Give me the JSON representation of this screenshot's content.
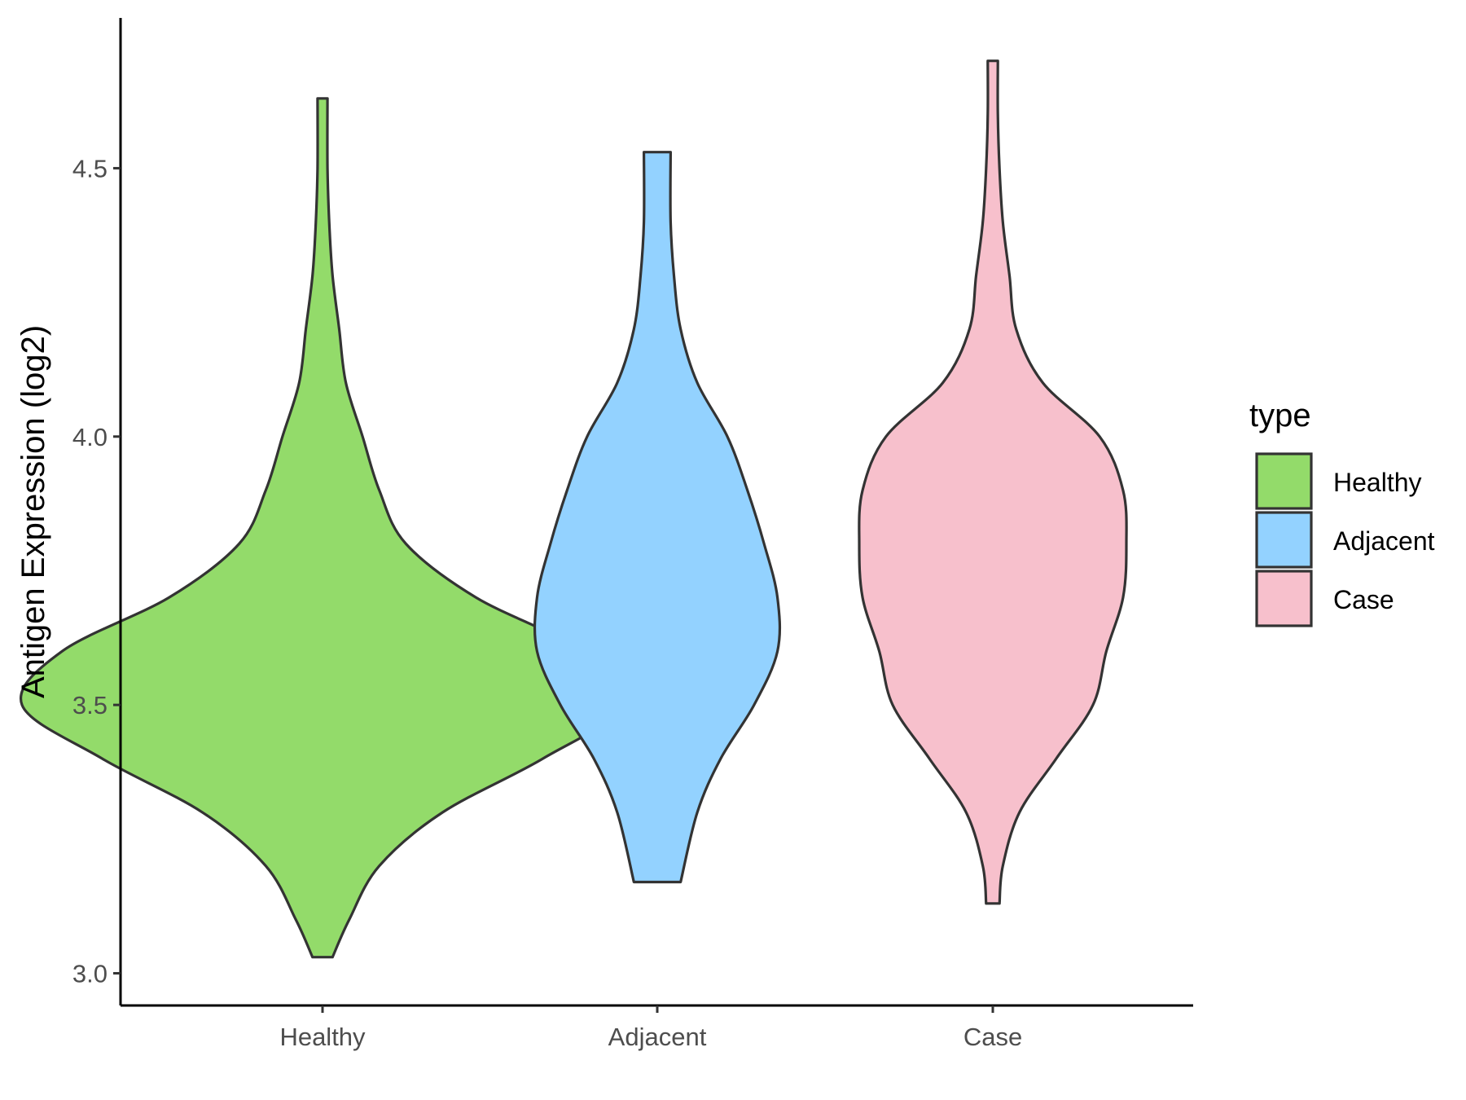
{
  "chart_data": {
    "type": "violin",
    "categories": [
      "Healthy",
      "Adjacent",
      "Case"
    ],
    "ylabel": "Antigen Expression (log2)",
    "xlabel": "",
    "ylim": [
      2.94,
      4.78
    ],
    "yticks": [
      3.0,
      3.5,
      4.0,
      4.5
    ],
    "ytick_labels": [
      "3.0",
      "3.5",
      "4.0",
      "4.5"
    ],
    "grid": false,
    "legend": {
      "title": "type",
      "placement": "right",
      "entries": [
        {
          "label": "Healthy",
          "color": "#93DB6A"
        },
        {
          "label": "Adjacent",
          "color": "#93D2FF"
        },
        {
          "label": "Case",
          "color": "#F7C0CC"
        }
      ]
    },
    "series": [
      {
        "category": "Healthy",
        "color": "#93DB6A",
        "min": 3.03,
        "max": 4.63,
        "density_profile": [
          [
            3.03,
            0.03
          ],
          [
            3.1,
            0.08
          ],
          [
            3.2,
            0.17
          ],
          [
            3.3,
            0.36
          ],
          [
            3.4,
            0.66
          ],
          [
            3.5,
            0.9
          ],
          [
            3.6,
            0.78
          ],
          [
            3.7,
            0.46
          ],
          [
            3.8,
            0.25
          ],
          [
            3.9,
            0.17
          ],
          [
            4.0,
            0.12
          ],
          [
            4.1,
            0.07
          ],
          [
            4.2,
            0.05
          ],
          [
            4.3,
            0.03
          ],
          [
            4.4,
            0.02
          ],
          [
            4.5,
            0.015
          ],
          [
            4.63,
            0.015
          ]
        ]
      },
      {
        "category": "Adjacent",
        "color": "#93D2FF",
        "min": 3.17,
        "max": 4.53,
        "density_profile": [
          [
            3.17,
            0.07
          ],
          [
            3.3,
            0.12
          ],
          [
            3.4,
            0.19
          ],
          [
            3.5,
            0.29
          ],
          [
            3.6,
            0.36
          ],
          [
            3.7,
            0.36
          ],
          [
            3.8,
            0.32
          ],
          [
            3.9,
            0.27
          ],
          [
            4.0,
            0.21
          ],
          [
            4.1,
            0.12
          ],
          [
            4.2,
            0.07
          ],
          [
            4.3,
            0.05
          ],
          [
            4.4,
            0.04
          ],
          [
            4.53,
            0.04
          ]
        ]
      },
      {
        "category": "Case",
        "color": "#F7C0CC",
        "min": 3.13,
        "max": 4.7,
        "density_profile": [
          [
            3.13,
            0.02
          ],
          [
            3.2,
            0.03
          ],
          [
            3.3,
            0.08
          ],
          [
            3.4,
            0.19
          ],
          [
            3.5,
            0.3
          ],
          [
            3.6,
            0.34
          ],
          [
            3.7,
            0.39
          ],
          [
            3.8,
            0.4
          ],
          [
            3.9,
            0.39
          ],
          [
            4.0,
            0.32
          ],
          [
            4.1,
            0.15
          ],
          [
            4.2,
            0.07
          ],
          [
            4.3,
            0.05
          ],
          [
            4.4,
            0.03
          ],
          [
            4.5,
            0.02
          ],
          [
            4.6,
            0.015
          ],
          [
            4.7,
            0.015
          ]
        ]
      }
    ]
  }
}
